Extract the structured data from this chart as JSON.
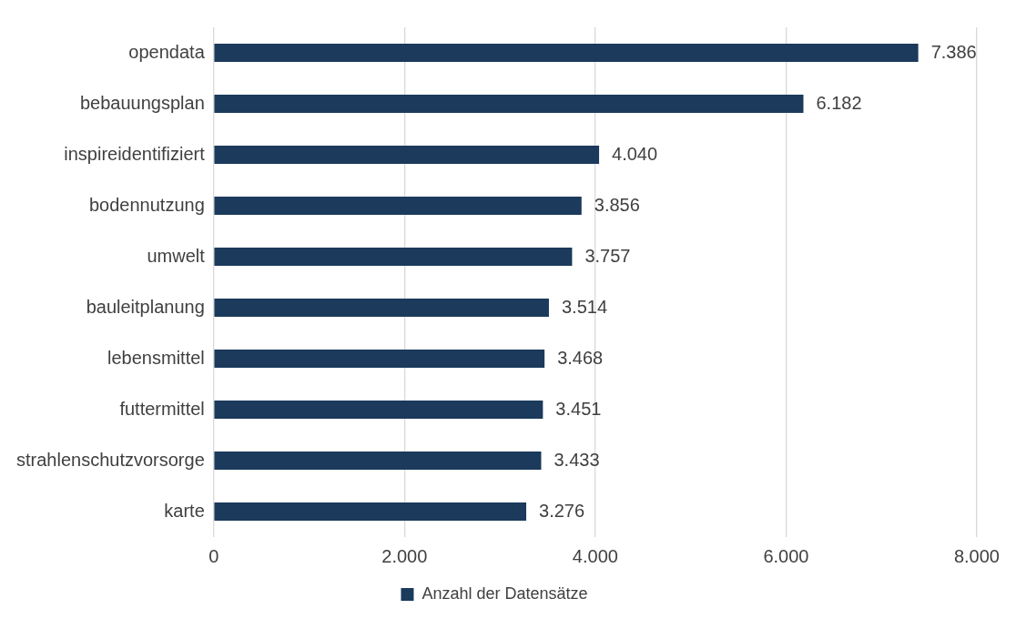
{
  "chart_data": {
    "type": "bar",
    "orientation": "horizontal",
    "categories": [
      "opendata",
      "bebauungsplan",
      "inspireidentifiziert",
      "bodennutzung",
      "umwelt",
      "bauleitplanung",
      "lebensmittel",
      "futtermittel",
      "strahlenschutzvorsorge",
      "karte"
    ],
    "series": [
      {
        "name": "Anzahl der Datensätze",
        "color": "#1b3a5c",
        "values": [
          7386,
          6182,
          4040,
          3856,
          3757,
          3514,
          3468,
          3451,
          3433,
          3276
        ],
        "value_labels": [
          "7.386",
          "6.182",
          "4.040",
          "3.856",
          "3.757",
          "3.514",
          "3.468",
          "3.451",
          "3.433",
          "3.276"
        ]
      }
    ],
    "xlim": [
      0,
      8000
    ],
    "xticks": [
      0,
      {
        "value": 2000,
        "label": "2.000"
      },
      {
        "value": 4000,
        "label": "4.000"
      },
      {
        "value": 6000,
        "label": "6.000"
      },
      {
        "value": 8000,
        "label": "8.000"
      }
    ],
    "grid": "x",
    "legend": "bottom"
  }
}
